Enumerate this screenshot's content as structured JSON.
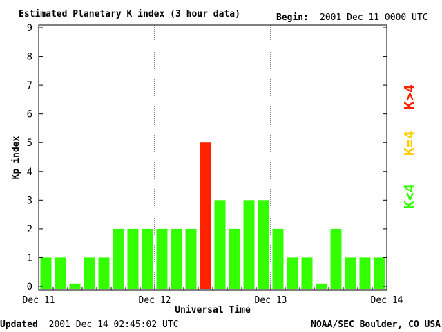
{
  "chart_data": {
    "type": "bar",
    "title": "Estimated Planetary K index (3 hour data)",
    "begin_label": "Begin:",
    "begin_value": "2001 Dec 11 0000 UTC",
    "ylabel": "Kp index",
    "xlabel": "Universal Time",
    "ylim": [
      0,
      9
    ],
    "yticks": [
      "0",
      "1",
      "2",
      "3",
      "4",
      "5",
      "6",
      "7",
      "8",
      "9"
    ],
    "xtick_labels": [
      "Dec 11",
      "Dec 12",
      "Dec 13",
      "Dec 14"
    ],
    "values": [
      1,
      1,
      0.1,
      1,
      1,
      2,
      2,
      2,
      2,
      2,
      2,
      5,
      3,
      2,
      3,
      3,
      2,
      1,
      1,
      0.1,
      2,
      1,
      1,
      1
    ],
    "bar_colors": [
      "#33ff00",
      "#33ff00",
      "#33ff00",
      "#33ff00",
      "#33ff00",
      "#33ff00",
      "#33ff00",
      "#33ff00",
      "#33ff00",
      "#33ff00",
      "#33ff00",
      "#ff2200",
      "#33ff00",
      "#33ff00",
      "#33ff00",
      "#33ff00",
      "#33ff00",
      "#33ff00",
      "#33ff00",
      "#33ff00",
      "#33ff00",
      "#33ff00",
      "#33ff00",
      "#33ff00"
    ],
    "legend": [
      {
        "label": "K>4",
        "color": "#ff2200"
      },
      {
        "label": "K=4",
        "color": "#ffcc00"
      },
      {
        "label": "K<4",
        "color": "#33ff00"
      }
    ],
    "grid": "dotted day dividers",
    "legend_placement": "right"
  },
  "footer": {
    "updated_label": "Updated",
    "updated_value": "2001 Dec 14 02:45:02 UTC",
    "source": "NOAA/SEC Boulder, CO USA"
  }
}
